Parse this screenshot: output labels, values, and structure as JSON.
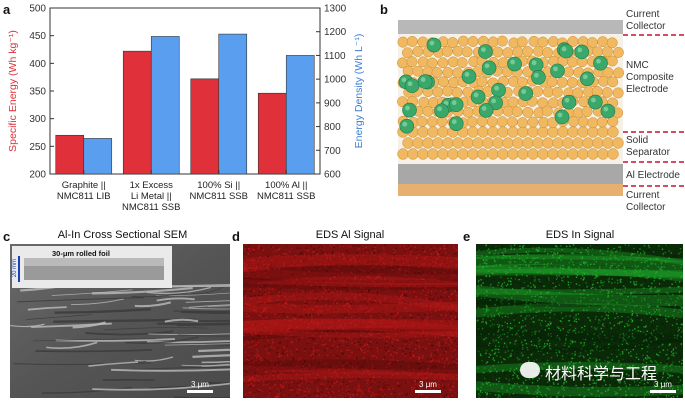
{
  "panels": {
    "a": "a",
    "b": "b",
    "c": "c",
    "d": "d",
    "e": "e"
  },
  "chart_data": {
    "type": "bar",
    "categories": [
      [
        "Graphite ||",
        "NMC811 LIB"
      ],
      [
        "1x Excess",
        "Li Metal ||",
        "NMC811 SSB"
      ],
      [
        "100% Si ||",
        "NMC811 SSB"
      ],
      [
        "100% Al ||",
        "NMC811 SSB"
      ]
    ],
    "series": [
      {
        "values": [
          270,
          422,
          372,
          346
        ],
        "color": "#e0303a",
        "axis": "left"
      },
      {
        "values": [
          750,
          1180,
          1190,
          1100
        ],
        "color": "#5a9ef0",
        "axis": "right"
      }
    ],
    "ylabel_left": "Specific Energy (Wh kg⁻¹)",
    "ylabel_right": "Energy Density (Wh L⁻¹)",
    "ylim_left": [
      200,
      500
    ],
    "ylim_right": [
      600,
      1300
    ],
    "yticks_left": [
      200,
      250,
      300,
      350,
      400,
      450,
      500
    ],
    "yticks_right": [
      600,
      700,
      800,
      900,
      1000,
      1100,
      1200,
      1300
    ],
    "left_axis_color": "#e0303a",
    "right_axis_color": "#3a7fd8"
  },
  "schematic": {
    "labels": {
      "current_collector_top": [
        "Current",
        "Collector"
      ],
      "nmc": [
        "NMC",
        "Composite",
        "Electrode"
      ],
      "separator": [
        "Solid",
        "Separator"
      ],
      "al_electrode": [
        "Al Electrode"
      ],
      "current_collector_bottom": [
        "Current",
        "Collector"
      ]
    },
    "colors": {
      "collector_top": "#b8b8b8",
      "particle_orange": "#f0b860",
      "particle_green": "#3aa86a",
      "al_layer": "#a8a8a8",
      "collector_bottom": "#e8b070",
      "dash": "#c8102e"
    }
  },
  "sem": {
    "title": "Al-In Cross Sectional SEM",
    "inset_label": "30-μm rolled foil",
    "inset_scale": "20 mm",
    "scale": "3 μm"
  },
  "eds_al": {
    "title": "EDS Al Signal",
    "scale": "3 μm",
    "color": "#c41a1a"
  },
  "eds_in": {
    "title": "EDS In Signal",
    "scale": "3 μm",
    "color": "#1fb02a"
  },
  "watermark": {
    "text": "材料科学与工程"
  }
}
